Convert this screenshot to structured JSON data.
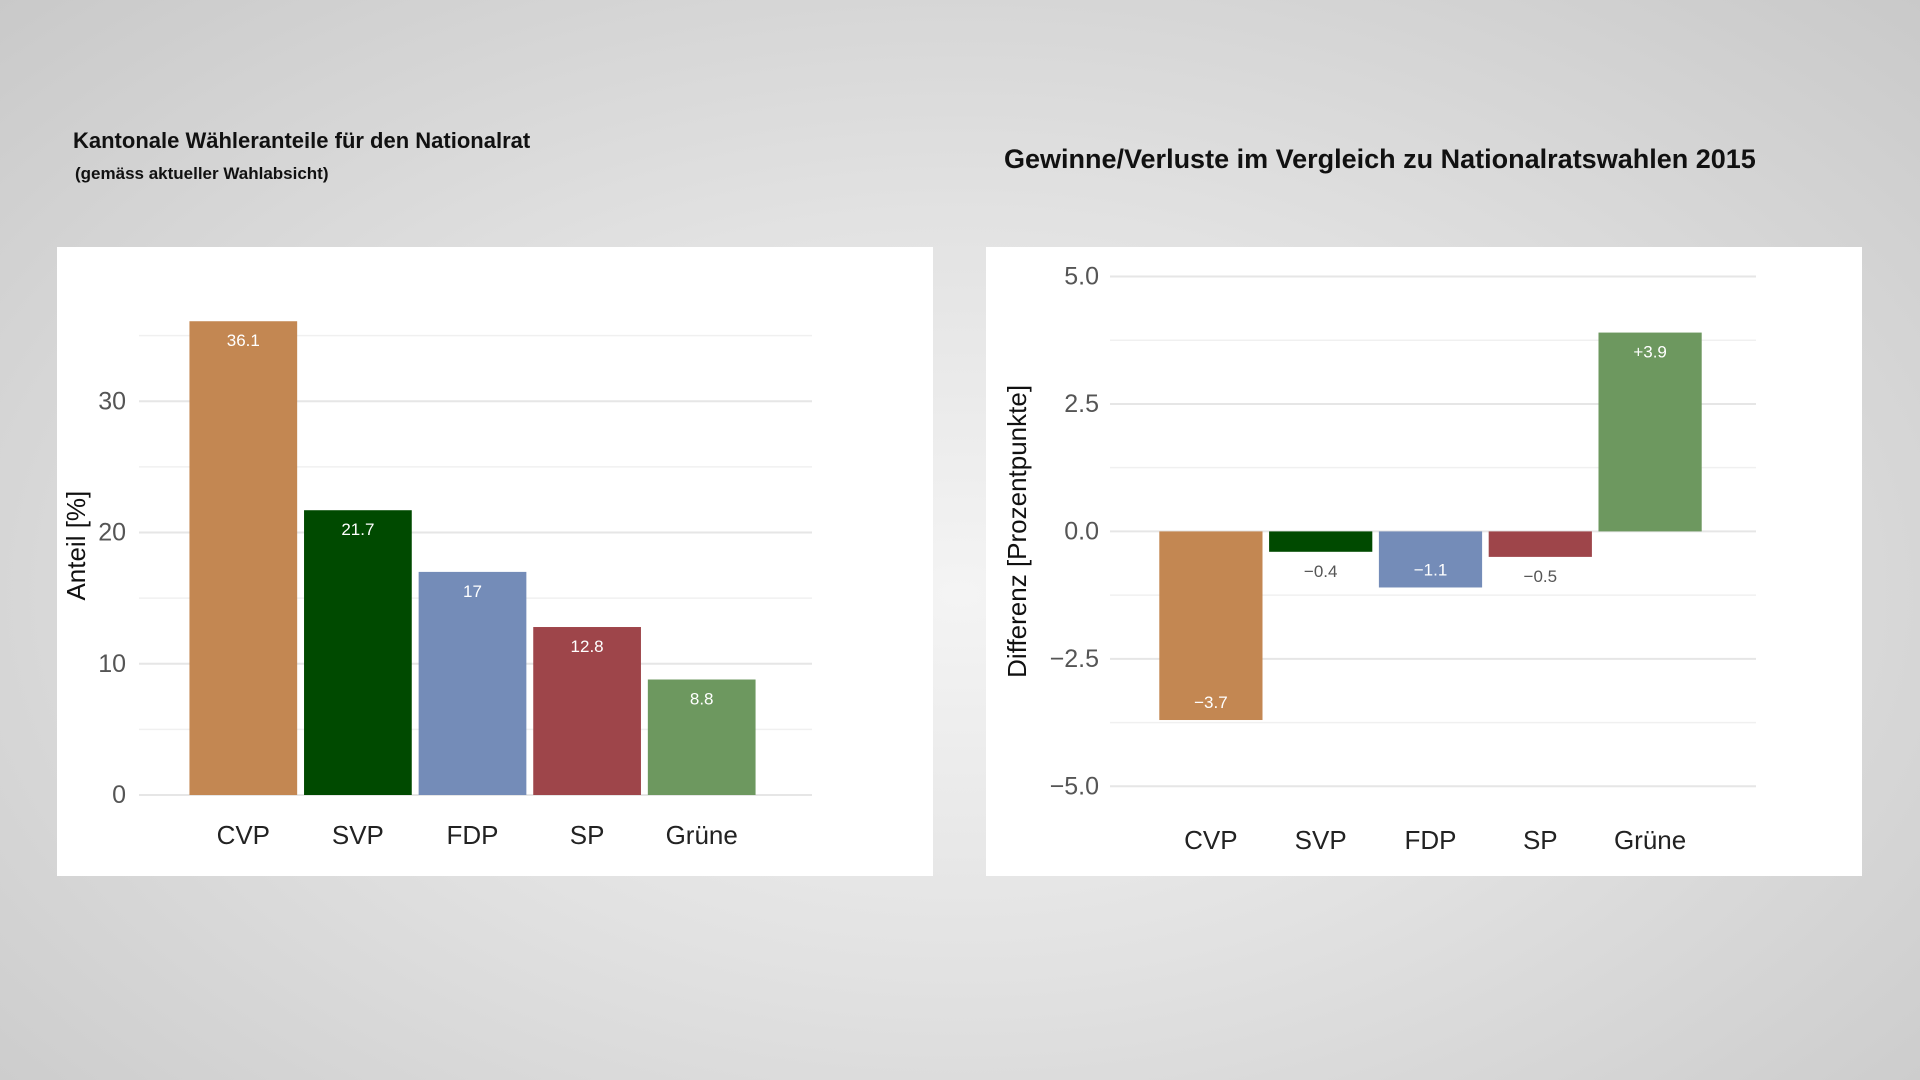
{
  "headings": {
    "left_title": "Kantonale Wähleranteile für den Nationalrat",
    "left_subtitle": "(gemäss aktueller Wahlabsicht)",
    "right_title": "Gewinne/Verluste im Vergleich zu Nationalratswahlen 2015"
  },
  "chart_data": [
    {
      "type": "bar",
      "title": "Kantonale Wähleranteile für den Nationalrat",
      "subtitle": "(gemäss aktueller Wahlabsicht)",
      "xlabel": "",
      "ylabel": "Anteil [%]",
      "categories": [
        "CVP",
        "SVP",
        "FDP",
        "SP",
        "Grüne"
      ],
      "values": [
        36.1,
        21.7,
        17,
        12.8,
        8.8
      ],
      "value_labels": [
        "36.1",
        "21.7",
        "17",
        "12.8",
        "8.8"
      ],
      "colors": [
        "#C38752",
        "#004A00",
        "#748CB8",
        "#9E454A",
        "#6D985F"
      ],
      "ylim": [
        0,
        38
      ],
      "yticks": [
        0,
        10,
        20,
        30
      ],
      "ytick_labels": [
        "0",
        "10",
        "20",
        "30"
      ],
      "grid": true,
      "legend": "none"
    },
    {
      "type": "bar",
      "title": "Gewinne/Verluste im Vergleich zu Nationalratswahlen 2015",
      "xlabel": "",
      "ylabel": "Differenz [Prozentpunkte]",
      "categories": [
        "CVP",
        "SVP",
        "FDP",
        "SP",
        "Grüne"
      ],
      "values": [
        -3.7,
        -0.4,
        -1.1,
        -0.5,
        3.9
      ],
      "value_labels": [
        "−3.7",
        "−0.4",
        "−1.1",
        "−0.5",
        "+3.9"
      ],
      "colors": [
        "#C38752",
        "#004A00",
        "#748CB8",
        "#9E454A",
        "#6D985F"
      ],
      "ylim": [
        -5.2,
        5.2
      ],
      "yticks": [
        -5,
        -2.5,
        0,
        2.5,
        5
      ],
      "ytick_labels": [
        "−5.0",
        "−2.5",
        "0.0",
        "2.5",
        "5.0"
      ],
      "grid": true,
      "legend": "none"
    }
  ]
}
